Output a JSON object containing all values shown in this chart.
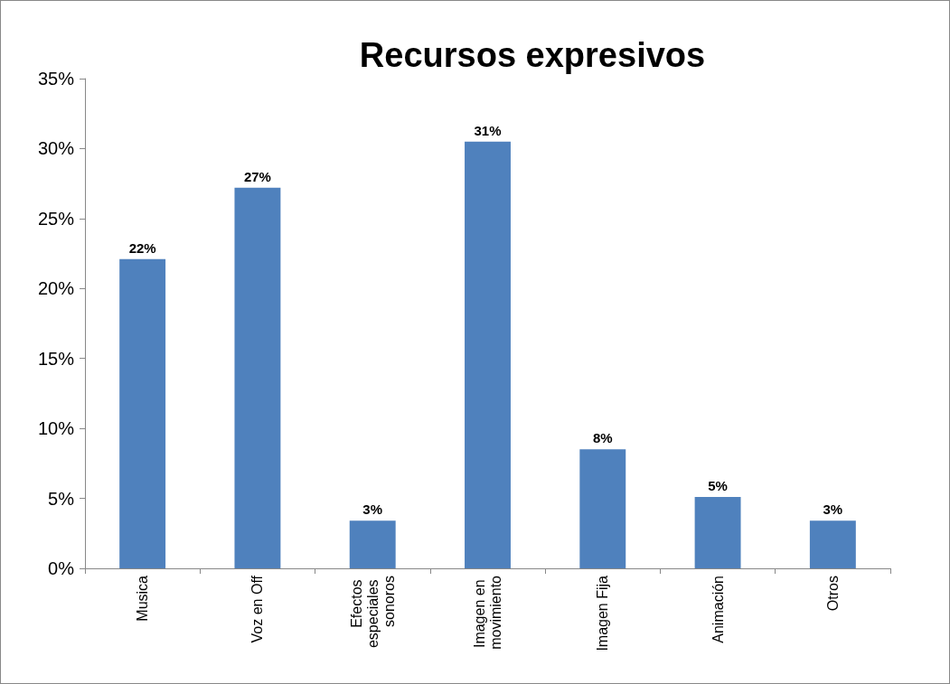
{
  "chart_data": {
    "type": "bar",
    "title": "Recursos expresivos",
    "categories": [
      "Musica",
      "Voz en Off",
      "Efectos especiales sonoros",
      "Imagen en movimiento",
      "Imagen Fija",
      "Animación",
      "Otros"
    ],
    "values": [
      22.1,
      27.2,
      3.4,
      30.5,
      8.5,
      5.1,
      3.4
    ],
    "value_labels": [
      "22%",
      "27%",
      "3%",
      "31%",
      "8%",
      "5%",
      "3%"
    ],
    "color": "#4f81bd",
    "ylim": [
      0,
      35
    ],
    "yticks": [
      {
        "value": 0,
        "label": "0%"
      },
      {
        "value": 5,
        "label": "5%"
      },
      {
        "value": 10,
        "label": "10%"
      },
      {
        "value": 15,
        "label": "15%"
      },
      {
        "value": 20,
        "label": "20%"
      },
      {
        "value": 25,
        "label": "25%"
      },
      {
        "value": 30,
        "label": "30%"
      },
      {
        "value": 35,
        "label": "35%"
      }
    ],
    "grid": false
  }
}
